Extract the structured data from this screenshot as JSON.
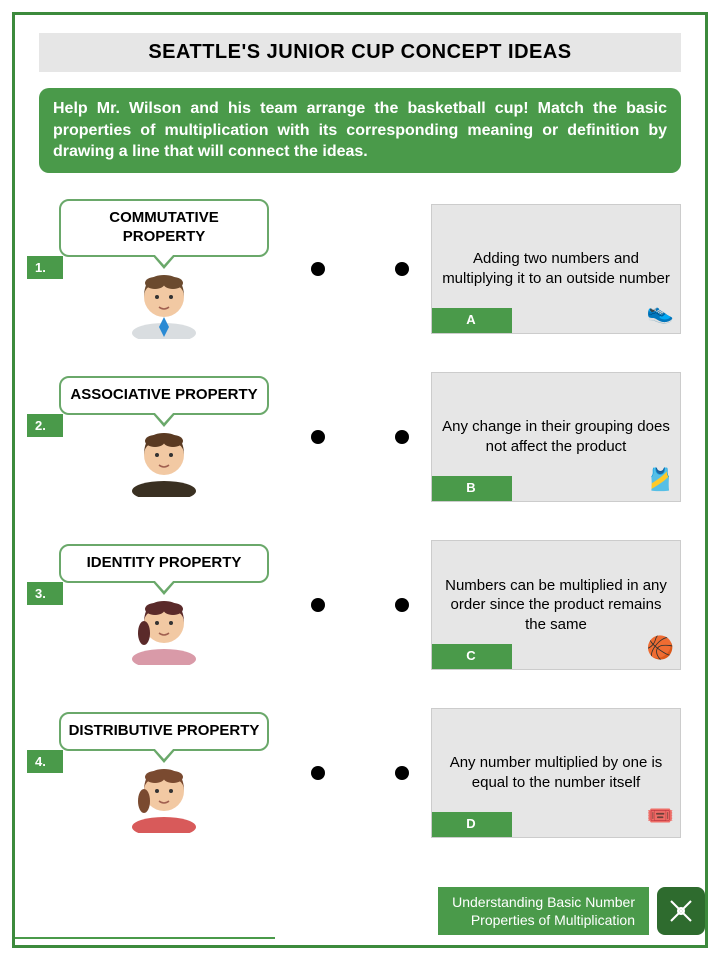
{
  "title": "SEATTLE'S JUNIOR CUP CONCEPT IDEAS",
  "instructions": "Help Mr. Wilson and his team arrange the basketball cup! Match the basic properties of multiplication with its corresponding meaning or definition by drawing a line that will connect the ideas.",
  "items": [
    {
      "num": "1.",
      "property": "COMMUTATIVE PROPERTY",
      "avatar": {
        "hair": "#6b4a2e",
        "skin": "#f2c9a3",
        "shirt": "#d9dde0",
        "tie": "#2a8ad4"
      }
    },
    {
      "num": "2.",
      "property": "ASSOCIATIVE PROPERTY",
      "avatar": {
        "hair": "#5a3a22",
        "skin": "#f2c9a3",
        "shirt": "#3a3022",
        "tie": null
      }
    },
    {
      "num": "3.",
      "property": "IDENTITY PROPERTY",
      "avatar": {
        "hair": "#5a2a2a",
        "skin": "#f2c9a3",
        "shirt": "#d99aa8",
        "tie": null
      }
    },
    {
      "num": "4.",
      "property": "DISTRIBUTIVE PROPERTY",
      "avatar": {
        "hair": "#7a4a30",
        "skin": "#f2c9a3",
        "shirt": "#d85a5a",
        "tie": null
      }
    }
  ],
  "definitions": [
    {
      "letter": "A",
      "text": "Adding two numbers and multiplying it to an outside number",
      "icon": "👟"
    },
    {
      "letter": "B",
      "text": "Any change in their grouping does not affect the product",
      "icon": "🎽"
    },
    {
      "letter": "C",
      "text": "Numbers can be multiplied in any order since the product remains the same",
      "icon": "🏀"
    },
    {
      "letter": "D",
      "text": "Any number multiplied by one is equal to the number itself",
      "icon": "🎟️"
    }
  ],
  "footer": {
    "line1": "Understanding Basic Number",
    "line2": "Properties of Multiplication"
  },
  "colors": {
    "green": "#4a9a4a",
    "border": "#3c8a3c",
    "grey": "#e6e6e6"
  }
}
